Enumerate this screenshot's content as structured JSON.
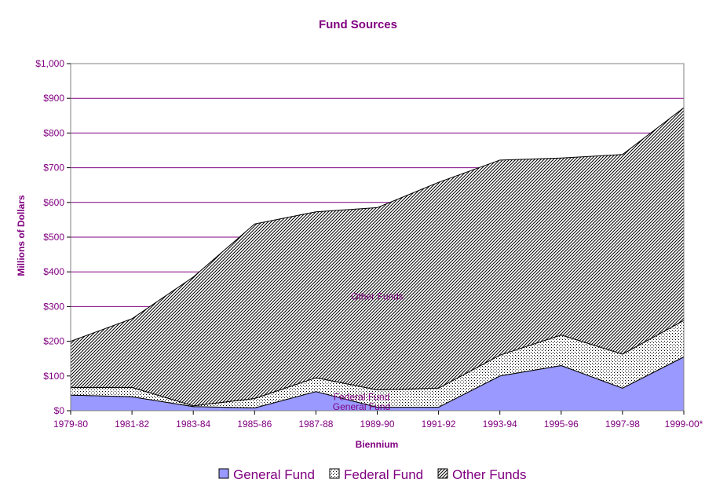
{
  "chart_data": {
    "type": "area",
    "stacked": true,
    "title": "Fund Sources",
    "xlabel": "Biennium",
    "ylabel": "Millions of Dollars",
    "categories": [
      "1979-80",
      "1981-82",
      "1983-84",
      "1985-86",
      "1987-88",
      "1989-90",
      "1991-92",
      "1993-94",
      "1995-96",
      "1997-98",
      "1999-00*"
    ],
    "ylim": [
      0,
      1000
    ],
    "yticks": [
      0,
      100,
      200,
      300,
      400,
      500,
      600,
      700,
      800,
      900,
      1000
    ],
    "ytick_labels": [
      "$0",
      "$100",
      "$200",
      "$300",
      "$400",
      "$500",
      "$600",
      "$700",
      "$800",
      "$900",
      "$1,000"
    ],
    "series": [
      {
        "name": "General Fund",
        "values": [
          45,
          40,
          12,
          8,
          55,
          10,
          10,
          100,
          130,
          65,
          155
        ]
      },
      {
        "name": "Federal Fund",
        "values": [
          22,
          27,
          2,
          27,
          40,
          50,
          55,
          60,
          88,
          98,
          105
        ]
      },
      {
        "name": "Other Funds",
        "values": [
          133,
          198,
          371,
          503,
          478,
          525,
          593,
          562,
          510,
          575,
          613
        ]
      }
    ],
    "area_labels": [
      "General Fund",
      "Federal Fund",
      "Other Funds"
    ],
    "legend": {
      "position": "bottom",
      "entries": [
        "General Fund",
        "Federal Fund",
        "Other Funds"
      ]
    },
    "grid": true,
    "colors": {
      "text": "#800080",
      "grid": "#800080",
      "general": "#9999ff",
      "federal": "#ffffff",
      "other": "#ffffff"
    }
  }
}
